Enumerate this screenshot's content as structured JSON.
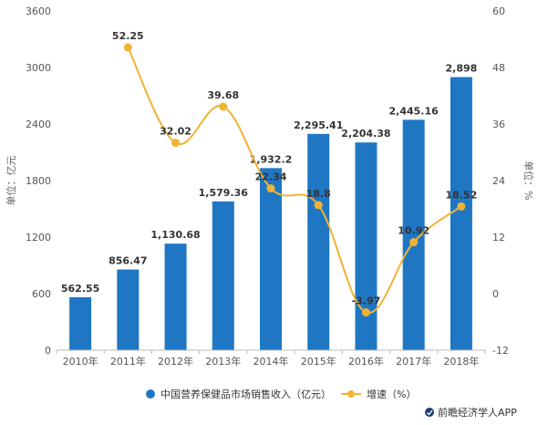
{
  "chart_data": {
    "type": "bar",
    "categories": [
      "2010年",
      "2011年",
      "2012年",
      "2013年",
      "2014年",
      "2015年",
      "2016年",
      "2017年",
      "2018年"
    ],
    "series": [
      {
        "name": "中国营养保健品市场销售收入（亿元）",
        "type": "bar",
        "axis": "left",
        "values": [
          562.55,
          856.47,
          1130.68,
          1579.36,
          1932.2,
          2295.41,
          2204.38,
          2445.16,
          2898
        ],
        "labels": [
          "562.55",
          "856.47",
          "1,130.68",
          "1,579.36",
          "1,932.2",
          "2,295.41",
          "2,204.38",
          "2,445.16",
          "2,898"
        ]
      },
      {
        "name": "增速（%）",
        "type": "line",
        "axis": "right",
        "values": [
          null,
          52.25,
          32.02,
          39.68,
          22.34,
          18.8,
          -3.97,
          10.92,
          18.52
        ],
        "labels": [
          "",
          "52.25",
          "32.02",
          "39.68",
          "22.34",
          "18.8",
          "-3.97",
          "10.92",
          "18.52"
        ]
      }
    ],
    "ylabel_left": "单位：亿元",
    "ylabel_right": "单位：%",
    "ylim_left": [
      0,
      3600
    ],
    "yticks_left": [
      "0",
      "600",
      "1200",
      "1800",
      "2400",
      "3000",
      "3600"
    ],
    "ylim_right": [
      -12,
      60
    ],
    "yticks_right": [
      "-12",
      "0",
      "12",
      "24",
      "36",
      "48",
      "60"
    ],
    "grid": false,
    "legend_position": "bottom",
    "colors": {
      "bar": "#1f77c4",
      "line": "#f2b233"
    }
  },
  "source": {
    "label": "前瞻经济学人APP"
  }
}
